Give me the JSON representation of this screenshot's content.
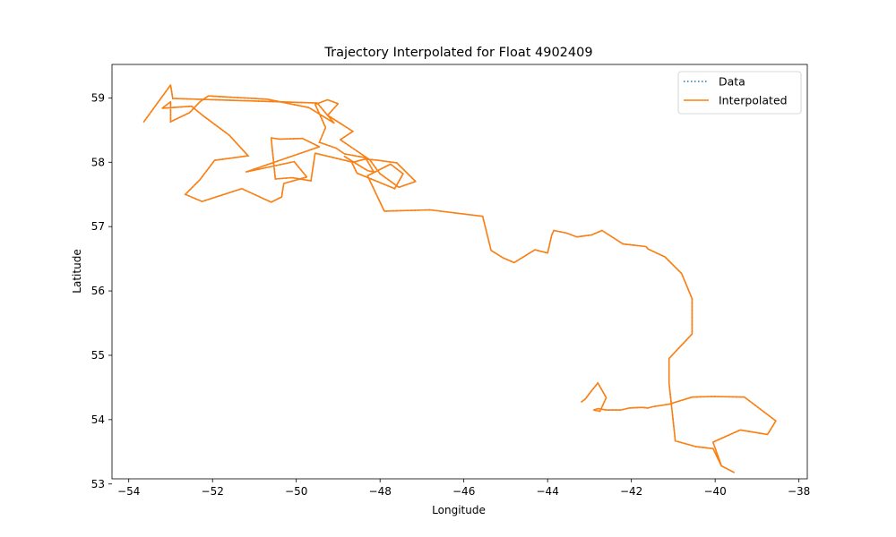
{
  "chart_data": {
    "type": "line",
    "title": "Trajectory Interpolated for Float 4902409",
    "xlabel": "Longitude",
    "ylabel": "Latitude",
    "xlim": [
      -54.4,
      -37.8
    ],
    "ylim": [
      53.08,
      59.52
    ],
    "xticks": [
      -54,
      -52,
      -50,
      -48,
      -46,
      -44,
      -42,
      -40,
      -38
    ],
    "yticks": [
      53,
      54,
      55,
      56,
      57,
      58,
      59
    ],
    "grid": false,
    "legend_position": "top-right",
    "series": [
      {
        "name": "Data",
        "style": "dotted",
        "color": "#1f77b4",
        "x": [
          -43.2,
          -43.1,
          -42.95,
          -42.8,
          -42.6,
          -42.75,
          -42.9,
          -42.8,
          -42.6,
          -42.25,
          -42.05,
          -41.75,
          -41.6,
          -41.5,
          -41.1,
          -40.55,
          -40.05,
          -39.3,
          -38.55,
          -38.75,
          -39.4,
          -40.05,
          -39.85,
          -39.55,
          -39.85,
          -40.05,
          -40.45,
          -40.95,
          -41.1,
          -41.1,
          -40.55,
          -40.55,
          -40.8,
          -41.2,
          -41.6,
          -41.65,
          -42.2,
          -42.7,
          -42.95,
          -43.3,
          -43.55,
          -43.85,
          -43.9,
          -44.0,
          -44.3,
          -44.8,
          -45.05,
          -45.35,
          -45.55,
          -46.8,
          -47.9,
          -48.3,
          -47.75,
          -47.45,
          -47.65,
          -48.55,
          -48.7,
          -48.85,
          -48.3,
          -48.15,
          -48.35,
          -48.85,
          -49.05,
          -49.45,
          -49.3,
          -49.55,
          -49.25,
          -49.0,
          -49.25,
          -48.65,
          -48.95,
          -48.25,
          -48.0,
          -47.55,
          -47.15,
          -47.6,
          -48.05,
          -48.35,
          -48.65,
          -49.55,
          -49.65,
          -50.1,
          -50.5,
          -50.6,
          -50.4,
          -49.85,
          -49.45,
          -51.2,
          -50.05,
          -49.75,
          -50.3,
          -50.35,
          -50.6,
          -51.3,
          -52.25,
          -52.65,
          -52.3,
          -51.95,
          -51.15,
          -51.6,
          -52.2,
          -52.5,
          -53.2,
          -53.0,
          -53.0,
          -52.55,
          -52.3,
          -52.1,
          -50.7,
          -49.7,
          -49.1,
          -49.5,
          -52.9,
          -52.95,
          -53.0,
          -53.65
        ],
        "y": [
          54.27,
          54.32,
          54.45,
          54.57,
          54.34,
          54.13,
          54.15,
          54.17,
          54.15,
          54.15,
          54.18,
          54.19,
          54.18,
          54.2,
          54.24,
          54.35,
          54.36,
          54.35,
          53.98,
          53.77,
          53.84,
          53.65,
          53.28,
          53.18,
          53.28,
          53.55,
          53.58,
          53.67,
          54.57,
          54.95,
          55.33,
          55.88,
          56.27,
          56.53,
          56.65,
          56.69,
          56.73,
          56.94,
          56.87,
          56.84,
          56.9,
          56.94,
          56.87,
          56.59,
          56.64,
          56.44,
          56.51,
          56.63,
          57.16,
          57.26,
          57.24,
          57.79,
          57.97,
          57.82,
          57.59,
          57.83,
          58.03,
          58.09,
          57.87,
          57.85,
          58.07,
          58.13,
          58.22,
          58.31,
          58.54,
          58.9,
          58.97,
          58.91,
          58.73,
          58.48,
          58.35,
          58.04,
          57.82,
          57.61,
          57.7,
          57.99,
          58.03,
          58.05,
          58.0,
          58.14,
          57.71,
          57.76,
          57.74,
          58.38,
          58.36,
          58.37,
          58.24,
          57.85,
          58.01,
          57.77,
          57.67,
          57.46,
          57.38,
          57.59,
          57.39,
          57.5,
          57.73,
          58.03,
          58.1,
          58.42,
          58.71,
          58.87,
          58.84,
          58.94,
          58.63,
          58.77,
          58.94,
          59.03,
          58.98,
          58.85,
          58.61,
          58.92,
          58.99,
          58.99,
          59.2,
          58.62
        ],
        "note_unused": ""
      },
      {
        "name": "Interpolated",
        "style": "solid",
        "color": "#ff7f0e"
      }
    ]
  },
  "legend": {
    "items": [
      {
        "label": "Data",
        "style": "dotted",
        "color": "#1f77b4"
      },
      {
        "label": "Interpolated",
        "style": "solid",
        "color": "#ff7f0e"
      }
    ]
  }
}
